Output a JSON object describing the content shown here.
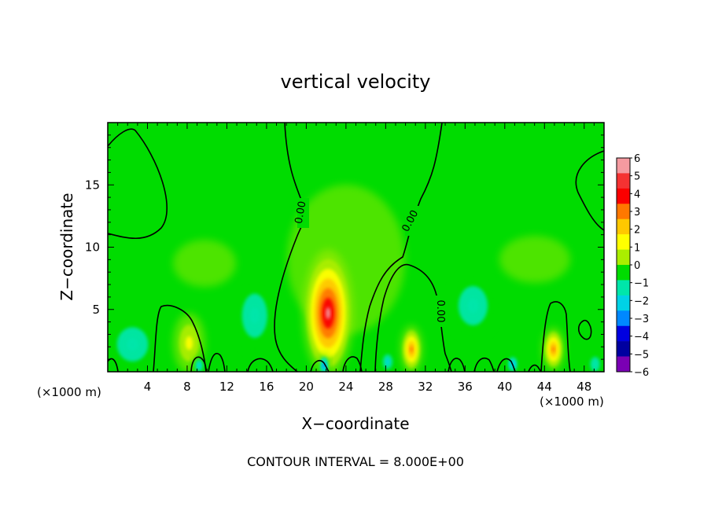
{
  "chart_data": {
    "type": "heatmap",
    "title": "vertical velocity",
    "xlabel": "X−coordinate",
    "ylabel": "Z−coordinate",
    "x_unit_left": "(×1000 m)",
    "x_unit_right": "(×1000 m)",
    "footer": "CONTOUR INTERVAL = 8.000E+00",
    "xlim": [
      0,
      50
    ],
    "ylim": [
      0,
      20
    ],
    "x_ticks": [
      4,
      8,
      12,
      16,
      20,
      24,
      28,
      32,
      36,
      40,
      44,
      48
    ],
    "x_tick_labels": [
      "4",
      "8",
      "12",
      "16",
      "20",
      "24",
      "28",
      "32",
      "36",
      "40",
      "44",
      "48"
    ],
    "y_ticks": [
      5,
      10,
      15
    ],
    "y_tick_labels": [
      "5",
      "10",
      "15"
    ],
    "contour_labels": [
      "0.00",
      "0.00",
      "0.00"
    ],
    "colorbar": {
      "levels": [
        6,
        5,
        4,
        3,
        2,
        1,
        0,
        -1,
        -2,
        -3,
        -4,
        -5,
        -6
      ],
      "labels": [
        "6",
        "5",
        "4",
        "3",
        "2",
        "1",
        "0",
        "−1",
        "−2",
        "−3",
        "−4",
        "−5",
        "−6"
      ],
      "colors": [
        "#f59aa0",
        "#f53232",
        "#fa0000",
        "#ff7800",
        "#ffc800",
        "#ffff00",
        "#aaee00",
        "#00dc00",
        "#00e6aa",
        "#00d2e6",
        "#0088ff",
        "#0000e0",
        "#0000a0",
        "#7a00b4"
      ]
    },
    "features": [
      {
        "kind": "updraft",
        "x": 22.2,
        "z": 4.7,
        "peak": 6,
        "sx": 1.6,
        "sz": 3.2
      },
      {
        "kind": "updraft",
        "x": 30.6,
        "z": 1.8,
        "peak": 3.5,
        "sx": 0.7,
        "sz": 1.2
      },
      {
        "kind": "updraft",
        "x": 44.9,
        "z": 1.8,
        "peak": 3.2,
        "sx": 0.7,
        "sz": 1.1
      },
      {
        "kind": "updraft",
        "x": 8.2,
        "z": 2.3,
        "peak": 1.2,
        "sx": 1.0,
        "sz": 1.5
      },
      {
        "kind": "downdraft",
        "x": 21.8,
        "z": 0.5,
        "peak": -3,
        "sx": 0.35,
        "sz": 0.6
      },
      {
        "kind": "downdraft",
        "x": 9.2,
        "z": 0.5,
        "peak": -2,
        "sx": 0.4,
        "sz": 0.5
      },
      {
        "kind": "downdraft",
        "x": 2.5,
        "z": 2.2,
        "peak": -1.5,
        "sx": 1.6,
        "sz": 1.4
      },
      {
        "kind": "downdraft",
        "x": 14.8,
        "z": 4.5,
        "peak": -1.6,
        "sx": 1.3,
        "sz": 1.8
      },
      {
        "kind": "downdraft",
        "x": 36.8,
        "z": 5.3,
        "peak": -1.7,
        "sx": 1.5,
        "sz": 1.6
      },
      {
        "kind": "downdraft",
        "x": 28.2,
        "z": 0.8,
        "peak": -2,
        "sx": 0.5,
        "sz": 0.6
      },
      {
        "kind": "downdraft",
        "x": 40.8,
        "z": 0.6,
        "peak": -2.2,
        "sx": 0.4,
        "sz": 0.5
      },
      {
        "kind": "downdraft",
        "x": 49.1,
        "z": 0.6,
        "peak": -1.6,
        "sx": 0.5,
        "sz": 0.6
      }
    ]
  }
}
